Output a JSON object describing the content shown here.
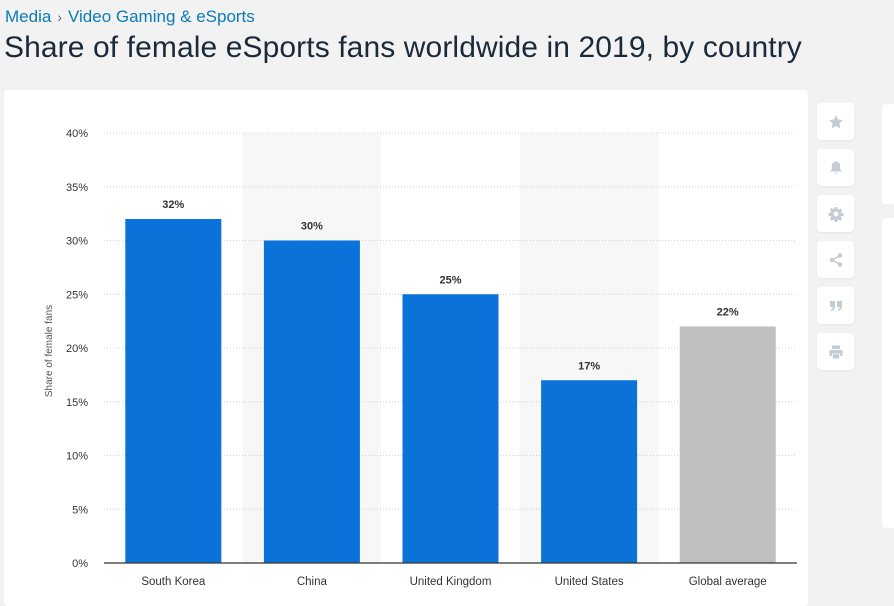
{
  "breadcrumb": {
    "items": [
      "Media",
      "Video Gaming & eSports"
    ],
    "separator": "›"
  },
  "title": "Share of female eSports fans worldwide in 2019, by country",
  "toolbar": {
    "icons": [
      "star-icon",
      "bell-icon",
      "gear-icon",
      "share-icon",
      "quote-icon",
      "print-icon"
    ]
  },
  "chart_data": {
    "type": "bar",
    "categories": [
      "South Korea",
      "China",
      "United Kingdom",
      "United States",
      "Global average"
    ],
    "values": [
      32,
      30,
      25,
      17,
      22
    ],
    "data_labels": [
      "32%",
      "30%",
      "25%",
      "17%",
      "22%"
    ],
    "ylabel": "Share of female fans",
    "xlabel": "",
    "ylim": [
      0,
      40
    ],
    "yticks": [
      0,
      5,
      10,
      15,
      20,
      25,
      30,
      35,
      40
    ],
    "ytick_labels": [
      "0%",
      "5%",
      "10%",
      "15%",
      "20%",
      "25%",
      "30%",
      "35%",
      "40%"
    ],
    "grid": true,
    "colors": {
      "bar": "#0b72d9",
      "average_bar": "#c0c0c0",
      "band": "#f7f7f7",
      "grid": "#cfcfcf",
      "axis": "#333333",
      "text": "#333333"
    }
  }
}
